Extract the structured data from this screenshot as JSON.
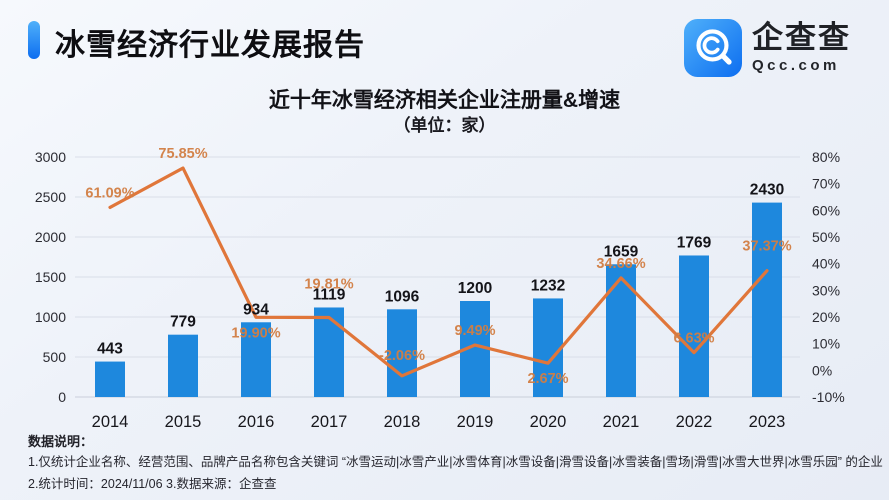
{
  "theme": {
    "accent_blue": "#0d6ef0",
    "logo_blue_light": "#4fb0fa",
    "bar_blue": "#1e88dd",
    "line_orange": "#e0763a",
    "percent_label_orange": "#d27e43",
    "grid_color": "#d9dee8",
    "baseline_color": "#c9cfda"
  },
  "header": {
    "title": "冰雪经济行业发展报告",
    "brand_name": "企查查",
    "brand_domain": "Qcc.com"
  },
  "chart_data": {
    "type": "bar+line",
    "title": "近十年冰雪经济相关企业注册量&增速",
    "subtitle": "（单位：家）",
    "categories": [
      "2014",
      "2015",
      "2016",
      "2017",
      "2018",
      "2019",
      "2020",
      "2021",
      "2022",
      "2023"
    ],
    "series": [
      {
        "name": "企业注册量",
        "type": "bar",
        "values": [
          443,
          779,
          934,
          1119,
          1096,
          1200,
          1232,
          1659,
          1769,
          2430
        ],
        "labels": [
          "443",
          "779",
          "934",
          "1119",
          "1096",
          "1200",
          "1232",
          "1659",
          "1769",
          "2430"
        ],
        "color": "#1e88dd"
      },
      {
        "name": "增速",
        "type": "line",
        "values": [
          61.09,
          75.85,
          19.9,
          19.81,
          -2.06,
          9.49,
          2.67,
          34.66,
          6.63,
          37.37
        ],
        "labels": [
          "61.09%",
          "75.85%",
          "19.90%",
          "19.81%",
          "-2.06%",
          "9.49%",
          "2.67%",
          "34.66%",
          "6.63%",
          "37.37%"
        ],
        "color": "#e0763a",
        "label_dy": [
          -10,
          -10,
          20,
          -29,
          -16,
          -10,
          20,
          -10,
          -10,
          -20
        ]
      }
    ],
    "left_axis": {
      "min": 0,
      "max": 3000,
      "ticks": [
        "3000",
        "2500",
        "2000",
        "1500",
        "1000",
        "500",
        "0"
      ]
    },
    "right_axis": {
      "min": -10,
      "max": 80,
      "ticks": [
        "80%",
        "70%",
        "60%",
        "50%",
        "40%",
        "30%",
        "20%",
        "10%",
        "0%",
        "-10%"
      ]
    },
    "grid": true,
    "legend": false
  },
  "footer": {
    "heading": "数据说明：",
    "note1": "1.仅统计企业名称、经营范围、品牌产品名称包含关键词 “冰雪运动|冰雪产业|冰雪体育|冰雪设备|滑雪设备|冰雪装备|雪场|滑雪|冰雪大世界|冰雪乐园” 的企业",
    "note2": "2.统计时间：2024/11/06    3.数据来源：企查查"
  }
}
